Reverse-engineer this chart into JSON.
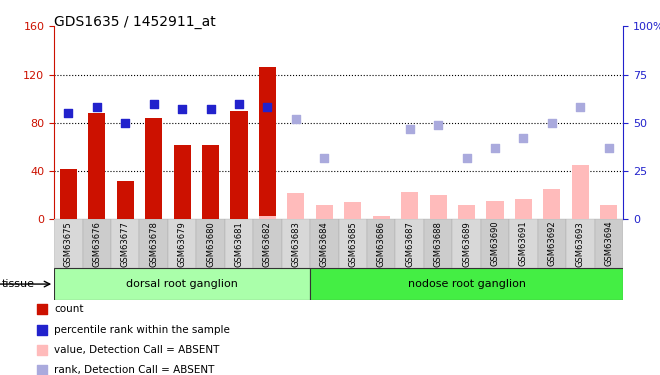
{
  "title": "GDS1635 / 1452911_at",
  "samples": [
    "GSM63675",
    "GSM63676",
    "GSM63677",
    "GSM63678",
    "GSM63679",
    "GSM63680",
    "GSM63681",
    "GSM63682",
    "GSM63683",
    "GSM63684",
    "GSM63685",
    "GSM63686",
    "GSM63687",
    "GSM63688",
    "GSM63689",
    "GSM63690",
    "GSM63691",
    "GSM63692",
    "GSM63693",
    "GSM63694"
  ],
  "count_present": [
    42,
    88,
    32,
    84,
    62,
    62,
    90,
    126,
    null,
    null,
    null,
    null,
    null,
    null,
    null,
    null,
    null,
    null,
    null,
    null
  ],
  "rank_present_pct": [
    55,
    58,
    50,
    60,
    57,
    57,
    60,
    58,
    null,
    null,
    null,
    null,
    null,
    null,
    null,
    null,
    null,
    null,
    null,
    null
  ],
  "value_absent": [
    null,
    null,
    null,
    null,
    null,
    null,
    null,
    3,
    22,
    12,
    14,
    3,
    23,
    20,
    12,
    15,
    17,
    25,
    45,
    12
  ],
  "rank_absent_pct": [
    null,
    null,
    null,
    null,
    null,
    null,
    null,
    null,
    52,
    32,
    null,
    null,
    47,
    49,
    32,
    37,
    42,
    50,
    58,
    37
  ],
  "count_color": "#cc1100",
  "rank_color": "#2222cc",
  "absent_val_color": "#ffbbbb",
  "absent_rank_color": "#aaaadd",
  "ylim_left": [
    0,
    160
  ],
  "ylim_right": [
    0,
    100
  ],
  "yticks_left": [
    0,
    40,
    80,
    120,
    160
  ],
  "yticks_right": [
    0,
    25,
    50,
    75,
    100
  ],
  "group1_label": "dorsal root ganglion",
  "group1_range": [
    0,
    9
  ],
  "group1_color": "#aaffaa",
  "group2_label": "nodose root ganglion",
  "group2_range": [
    9,
    20
  ],
  "group2_color": "#44ee44",
  "legend": [
    {
      "label": "count",
      "color": "#cc1100"
    },
    {
      "label": "percentile rank within the sample",
      "color": "#2222cc"
    },
    {
      "label": "value, Detection Call = ABSENT",
      "color": "#ffbbbb"
    },
    {
      "label": "rank, Detection Call = ABSENT",
      "color": "#aaaadd"
    }
  ]
}
